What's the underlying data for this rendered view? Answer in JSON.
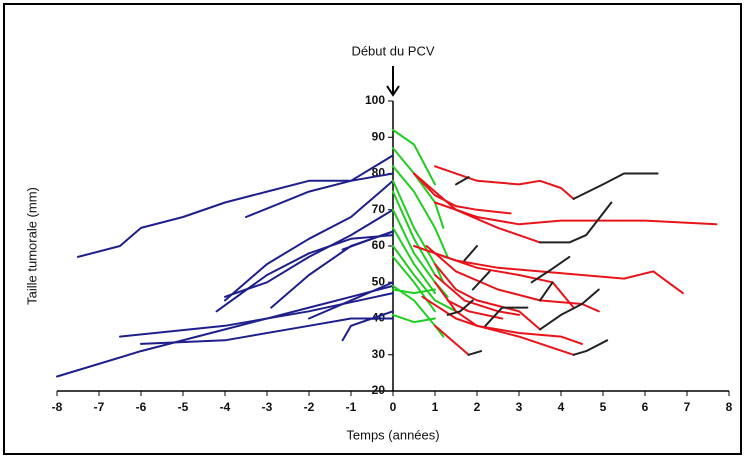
{
  "chart_data": {
    "type": "line",
    "annotation": "Début du PCV",
    "x_label": "Temps (années)",
    "y_label": "Taille tumorale (mm)",
    "xlim": [
      -8,
      8
    ],
    "ylim": [
      20,
      100
    ],
    "xticks": [
      -8,
      -7,
      -6,
      -5,
      -4,
      -3,
      -2,
      -1,
      0,
      1,
      2,
      3,
      4,
      5,
      6,
      7,
      8
    ],
    "yticks": [
      20,
      30,
      40,
      50,
      60,
      70,
      80,
      90,
      100
    ],
    "series": [
      {
        "color": "#1f1f8c",
        "x": [
          -7.5,
          -6.5,
          -6,
          -5,
          -4,
          -3,
          -2,
          -1,
          0
        ],
        "values": [
          57,
          60,
          65,
          68,
          72,
          75,
          78,
          78,
          85
        ]
      },
      {
        "color": "#1f1f8c",
        "x": [
          -3.5,
          -2,
          -1,
          0
        ],
        "values": [
          68,
          75,
          78,
          80
        ]
      },
      {
        "color": "#1f1f8c",
        "x": [
          -8,
          -6,
          -4,
          -2,
          -1,
          0
        ],
        "values": [
          24,
          31,
          37,
          43,
          46,
          49
        ]
      },
      {
        "color": "#1f1f8c",
        "x": [
          -6.5,
          -4,
          -2,
          0
        ],
        "values": [
          35,
          38,
          42,
          47
        ]
      },
      {
        "color": "#1f1f8c",
        "x": [
          -6,
          -4,
          -2,
          -1,
          0
        ],
        "values": [
          33,
          34,
          38,
          40,
          40
        ]
      },
      {
        "color": "#1f1f8c",
        "x": [
          -4.2,
          -3,
          -2,
          -1,
          0
        ],
        "values": [
          42,
          52,
          58,
          62,
          63
        ]
      },
      {
        "color": "#1f1f8c",
        "x": [
          -4,
          -3.5,
          -3,
          -2,
          -1,
          0
        ],
        "values": [
          46,
          48,
          50,
          57,
          63,
          70
        ]
      },
      {
        "color": "#1f1f8c",
        "x": [
          -4,
          -3,
          -2,
          -1,
          0
        ],
        "values": [
          45,
          55,
          62,
          68,
          78
        ]
      },
      {
        "color": "#1f1f8c",
        "x": [
          -2.9,
          -2,
          -1,
          0
        ],
        "values": [
          43,
          52,
          60,
          64
        ]
      },
      {
        "color": "#1f1f8c",
        "x": [
          -1.2,
          -1,
          -0.5,
          0
        ],
        "values": [
          34,
          38,
          40,
          42
        ]
      },
      {
        "color": "#1f1f8c",
        "x": [
          -2,
          -1,
          0
        ],
        "values": [
          40,
          45,
          50
        ]
      },
      {
        "color": "#1f1f8c",
        "x": [
          -1.2,
          -0.5,
          0
        ],
        "values": [
          59,
          62,
          64
        ]
      },
      {
        "color": "#22cc22",
        "x": [
          0,
          0.5,
          1
        ],
        "values": [
          92,
          88,
          77
        ]
      },
      {
        "color": "#22cc22",
        "x": [
          0,
          0.5,
          1,
          1.2
        ],
        "values": [
          87,
          80,
          72,
          65
        ]
      },
      {
        "color": "#22cc22",
        "x": [
          0,
          0.5,
          1,
          1.3
        ],
        "values": [
          82,
          75,
          65,
          57
        ]
      },
      {
        "color": "#22cc22",
        "x": [
          0,
          0.5,
          1,
          1.2
        ],
        "values": [
          78,
          65,
          55,
          50
        ]
      },
      {
        "color": "#22cc22",
        "x": [
          0,
          0.5,
          1
        ],
        "values": [
          75,
          62,
          52
        ]
      },
      {
        "color": "#22cc22",
        "x": [
          0,
          0.5,
          1,
          1.3
        ],
        "values": [
          70,
          58,
          50,
          46
        ]
      },
      {
        "color": "#22cc22",
        "x": [
          0,
          0.5,
          1
        ],
        "values": [
          65,
          55,
          47
        ]
      },
      {
        "color": "#22cc22",
        "x": [
          0,
          0.5,
          1,
          1.5
        ],
        "values": [
          60,
          52,
          45,
          42
        ]
      },
      {
        "color": "#22cc22",
        "x": [
          0,
          0.5,
          1
        ],
        "values": [
          57,
          50,
          42
        ]
      },
      {
        "color": "#22cc22",
        "x": [
          0,
          0.5,
          1,
          1.2
        ],
        "values": [
          49,
          45,
          38,
          35
        ]
      },
      {
        "color": "#22cc22",
        "x": [
          0,
          0.5,
          1
        ],
        "values": [
          48,
          47,
          48
        ]
      },
      {
        "color": "#22cc22",
        "x": [
          0,
          0.5,
          1
        ],
        "values": [
          41,
          39,
          40
        ]
      },
      {
        "color": "#e8141a",
        "x": [
          1,
          2,
          3,
          3.5,
          4,
          4.3
        ],
        "values": [
          82,
          78,
          77,
          78,
          76,
          73
        ]
      },
      {
        "color": "#e8141a",
        "x": [
          1,
          2,
          3,
          4,
          5,
          6,
          7.7
        ],
        "values": [
          72,
          68,
          66,
          67,
          67,
          67,
          66
        ]
      },
      {
        "color": "#e8141a",
        "x": [
          0.5,
          1,
          1.5,
          2,
          2.8
        ],
        "values": [
          80,
          74,
          71,
          70,
          69
        ]
      },
      {
        "color": "#e8141a",
        "x": [
          0.5,
          1.5,
          2.5,
          3.5
        ],
        "values": [
          80,
          70,
          65,
          61
        ]
      },
      {
        "color": "#e8141a",
        "x": [
          0.5,
          1.5,
          2.5,
          3.5,
          4.5,
          5.5,
          6.2,
          6.9
        ],
        "values": [
          60,
          56,
          54,
          53,
          52,
          51,
          53,
          47
        ]
      },
      {
        "color": "#e8141a",
        "x": [
          1,
          2,
          3,
          3.8,
          4.3
        ],
        "values": [
          58,
          54,
          52,
          50,
          43
        ]
      },
      {
        "color": "#e8141a",
        "x": [
          0.8,
          1.5,
          2.5,
          3.5,
          4.5,
          4.9
        ],
        "values": [
          60,
          53,
          48,
          45,
          44,
          42
        ]
      },
      {
        "color": "#e8141a",
        "x": [
          1,
          1.5,
          2,
          3,
          3.5
        ],
        "values": [
          55,
          48,
          45,
          42,
          37
        ]
      },
      {
        "color": "#e8141a",
        "x": [
          1,
          1.7,
          2.5,
          3
        ],
        "values": [
          52,
          45,
          42,
          41
        ]
      },
      {
        "color": "#e8141a",
        "x": [
          1,
          1.5,
          2,
          3,
          4,
          4.5
        ],
        "values": [
          50,
          42,
          38,
          36,
          35,
          33
        ]
      },
      {
        "color": "#e8141a",
        "x": [
          0.7,
          1.5,
          2
        ],
        "values": [
          46,
          40,
          38
        ]
      },
      {
        "color": "#e8141a",
        "x": [
          1,
          1.5,
          1.8
        ],
        "values": [
          38,
          33,
          30
        ]
      },
      {
        "color": "#e8141a",
        "x": [
          2,
          3,
          4.3
        ],
        "values": [
          38,
          35,
          30
        ]
      },
      {
        "color": "#e8141a",
        "x": [
          1.3,
          1.8,
          2.6
        ],
        "values": [
          45,
          42,
          40
        ]
      },
      {
        "color": "#222222",
        "x": [
          4.3,
          5,
          5.5,
          6.3
        ],
        "values": [
          73,
          77,
          80,
          80
        ]
      },
      {
        "color": "#222222",
        "x": [
          3.5,
          4.2,
          4.6,
          5.2
        ],
        "values": [
          61,
          61,
          63,
          72
        ]
      },
      {
        "color": "#222222",
        "x": [
          1.7,
          2
        ],
        "values": [
          56,
          60
        ]
      },
      {
        "color": "#222222",
        "x": [
          1.9,
          2.3
        ],
        "values": [
          48,
          53
        ]
      },
      {
        "color": "#222222",
        "x": [
          3.3,
          3.7,
          4.2
        ],
        "values": [
          50,
          53,
          57
        ]
      },
      {
        "color": "#222222",
        "x": [
          3.5,
          3.8
        ],
        "values": [
          45,
          50
        ]
      },
      {
        "color": "#222222",
        "x": [
          3.5,
          4,
          4.5,
          4.9
        ],
        "values": [
          37,
          41,
          44,
          48
        ]
      },
      {
        "color": "#222222",
        "x": [
          2.2,
          2.6,
          3.2
        ],
        "values": [
          38,
          43,
          43
        ]
      },
      {
        "color": "#222222",
        "x": [
          1.8,
          2.1
        ],
        "values": [
          30,
          31
        ]
      },
      {
        "color": "#222222",
        "x": [
          4.3,
          4.6,
          5.1
        ],
        "values": [
          30,
          31,
          34
        ]
      },
      {
        "color": "#222222",
        "x": [
          1.3,
          1.6,
          1.9
        ],
        "values": [
          41,
          42,
          45
        ]
      },
      {
        "color": "#222222",
        "x": [
          1.5,
          1.8
        ],
        "values": [
          77,
          79
        ]
      }
    ]
  }
}
